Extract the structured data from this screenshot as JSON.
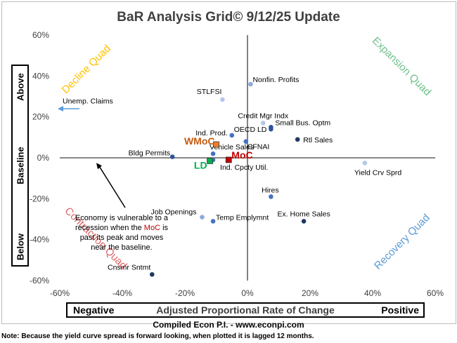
{
  "chart_data": {
    "type": "scatter",
    "title": "BaR Analysis Grid© 9/12/25 Update",
    "xlabel": {
      "left": "Negative",
      "center": "Adjusted Proportional Rate of Change",
      "right": "Positive"
    },
    "ylabel": {
      "top": "Above",
      "middle": "Baseline",
      "bottom": "Below"
    },
    "xlim": [
      -60,
      60
    ],
    "ylim": [
      -60,
      60
    ],
    "x_ticks": [
      "-60%",
      "-40%",
      "-20%",
      "0%",
      "20%",
      "40%",
      "60%"
    ],
    "y_ticks": [
      "60%",
      "40%",
      "20%",
      "0%",
      "-20%",
      "-40%",
      "-60%"
    ],
    "quadrant_labels": {
      "top_left": "Decline Quad",
      "top_right": "Expansion Quad",
      "bottom_left": "Contraction Quad",
      "bottom_right": "Recovery Quad"
    },
    "points": [
      {
        "label": "Nonfin. Profits",
        "x": 1,
        "y": 36,
        "color": "#8eaadb"
      },
      {
        "label": "STLFSI",
        "x": -8,
        "y": 28.5,
        "color": "#b4c7e7"
      },
      {
        "label": "Credit Mgr Indx",
        "x": 5,
        "y": 17,
        "color": "#b4c7e7"
      },
      {
        "label": "Small Bus. Optm",
        "x": 7.5,
        "y": 15,
        "color": "#2f5597"
      },
      {
        "label": "OECD LD",
        "x": 7.5,
        "y": 14,
        "color": "#2f5597"
      },
      {
        "label": "Ind. Prod.",
        "x": -5,
        "y": 11,
        "color": "#4472c4"
      },
      {
        "label": "Rtl Sales",
        "x": 16,
        "y": 9,
        "color": "#1f3864"
      },
      {
        "label": "CFNAI",
        "x": -0.5,
        "y": 8,
        "color": "#4472c4"
      },
      {
        "label": "Vehicle Sales",
        "x": -11,
        "y": 2,
        "color": "#4472c4"
      },
      {
        "label": "Bldg Permits",
        "x": -24,
        "y": 0.5,
        "color": "#2f5597"
      },
      {
        "label": "Ind. Cpcty Util.",
        "x": -11,
        "y": -1,
        "color": "#4472c4"
      },
      {
        "label": "Yield Crv Sprd",
        "x": 37.5,
        "y": -2.5,
        "color": "#b4c7e7"
      },
      {
        "label": "Hires",
        "x": 7.5,
        "y": -19,
        "color": "#4472c4"
      },
      {
        "label": "Job Openings",
        "x": -14.5,
        "y": -29,
        "color": "#8eaadb"
      },
      {
        "label": "Temp Emplymnt",
        "x": -11,
        "y": -31,
        "color": "#4472c4"
      },
      {
        "label": "Ex. Home Sales",
        "x": 18,
        "y": -31,
        "color": "#1f3864"
      },
      {
        "label": "Cnsmr Sntmt",
        "x": -30.5,
        "y": -57,
        "color": "#1f3864"
      }
    ],
    "markers": [
      {
        "label": "WMoC",
        "x": -10,
        "y": 6.5,
        "color": "#ed7d31",
        "label_color": "#c55a11"
      },
      {
        "label": "MoC",
        "x": -6,
        "y": -1,
        "color": "#c00000",
        "label_color": "#c00000"
      },
      {
        "label": "LD",
        "x": -12,
        "y": -1.5,
        "color": "#00b050",
        "label_color": "#00b050"
      }
    ],
    "annotations": {
      "unemp_claims": "Unemp. Claims",
      "note_pre": "Economy is vulnerable to a recession when the ",
      "note_hl": "MoC",
      "note_post": " is past its peak and moves near the baseline."
    }
  },
  "footer": {
    "compiled": "Compiled Econ P.I. - www.econpi.com",
    "note": "Note: Because the yield curve spread is forward looking, when plotted it is lagged 12 months."
  },
  "colors": {
    "decline": "#ffc000",
    "expansion": "#70c08c",
    "contraction": "#e06666",
    "recovery": "#5b9bd5",
    "arrow": "#5b9bd5"
  }
}
